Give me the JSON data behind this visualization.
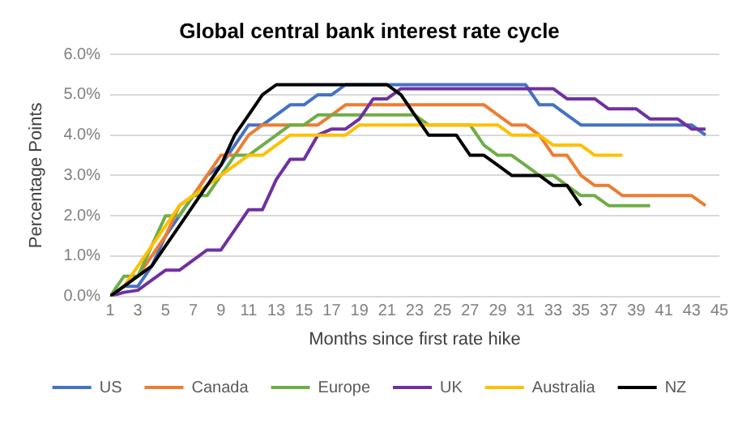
{
  "chart_data": {
    "type": "line",
    "title": "Global central bank interest rate cycle",
    "xlabel": "Months since first rate hike",
    "ylabel": "Percentage Points",
    "x": [
      1,
      2,
      3,
      4,
      5,
      6,
      7,
      8,
      9,
      10,
      11,
      12,
      13,
      14,
      15,
      16,
      17,
      18,
      19,
      20,
      21,
      22,
      23,
      24,
      25,
      26,
      27,
      28,
      29,
      30,
      31,
      32,
      33,
      34,
      35,
      36,
      37,
      38,
      39,
      40,
      41,
      42,
      43,
      44
    ],
    "xlim": [
      1,
      45
    ],
    "xticks": [
      1,
      3,
      5,
      7,
      9,
      11,
      13,
      15,
      17,
      19,
      21,
      23,
      25,
      27,
      29,
      31,
      33,
      35,
      37,
      39,
      41,
      43,
      45
    ],
    "ylim": [
      0,
      6
    ],
    "yticks": [
      {
        "value": 0,
        "label": "0.0%"
      },
      {
        "value": 1,
        "label": "1.0%"
      },
      {
        "value": 2,
        "label": "2.0%"
      },
      {
        "value": 3,
        "label": "3.0%"
      },
      {
        "value": 4,
        "label": "4.0%"
      },
      {
        "value": 5,
        "label": "5.0%"
      },
      {
        "value": 6,
        "label": "6.0%"
      }
    ],
    "grid": "y",
    "legend": "bottom",
    "marker": "none",
    "line_style": "solid",
    "series": [
      {
        "name": "US",
        "color": "#4472c4",
        "values": [
          0,
          0.25,
          0.25,
          0.75,
          1.5,
          2,
          2.5,
          3,
          3.25,
          3.75,
          4.25,
          4.25,
          4.5,
          4.75,
          4.75,
          5,
          5,
          5.25,
          5.25,
          5.25,
          5.25,
          5.25,
          5.25,
          5.25,
          5.25,
          5.25,
          5.25,
          5.25,
          5.25,
          5.25,
          5.25,
          4.75,
          4.75,
          4.5,
          4.25,
          4.25,
          4.25,
          4.25,
          4.25,
          4.25,
          4.25,
          4.25,
          4.25,
          4
        ]
      },
      {
        "name": "Canada",
        "color": "#ed7d31",
        "values": [
          0,
          0.25,
          0.5,
          1,
          1.5,
          2.25,
          2.5,
          3,
          3.5,
          3.5,
          4,
          4.25,
          4.25,
          4.25,
          4.25,
          4.25,
          4.5,
          4.75,
          4.75,
          4.75,
          4.75,
          4.75,
          4.75,
          4.75,
          4.75,
          4.75,
          4.75,
          4.75,
          4.5,
          4.25,
          4.25,
          4,
          3.5,
          3.5,
          3,
          2.75,
          2.75,
          2.5,
          2.5,
          2.5,
          2.5,
          2.5,
          2.5,
          2.25
        ]
      },
      {
        "name": "Europe",
        "color": "#70ad47",
        "values": [
          0,
          0.5,
          0.5,
          1.25,
          2,
          2,
          2.5,
          2.5,
          3,
          3.5,
          3.5,
          3.75,
          4,
          4.25,
          4.25,
          4.5,
          4.5,
          4.5,
          4.5,
          4.5,
          4.5,
          4.5,
          4.5,
          4.25,
          4.25,
          4.25,
          4.25,
          3.75,
          3.5,
          3.5,
          3.25,
          3,
          3,
          2.75,
          2.5,
          2.5,
          2.25,
          2.25,
          2.25,
          2.25,
          null,
          null,
          null,
          null
        ]
      },
      {
        "name": "UK",
        "color": "#7030a0",
        "values": [
          0,
          0.1,
          0.15,
          0.4,
          0.65,
          0.65,
          0.9,
          1.15,
          1.15,
          1.65,
          2.15,
          2.15,
          2.9,
          3.4,
          3.4,
          4,
          4.15,
          4.15,
          4.4,
          4.9,
          4.9,
          5.15,
          5.15,
          5.15,
          5.15,
          5.15,
          5.15,
          5.15,
          5.15,
          5.15,
          5.15,
          5.15,
          5.15,
          4.9,
          4.9,
          4.9,
          4.65,
          4.65,
          4.65,
          4.4,
          4.4,
          4.4,
          4.15,
          4.15
        ]
      },
      {
        "name": "Australia",
        "color": "#ffc000",
        "values": [
          0,
          0.25,
          0.75,
          1.25,
          1.75,
          2.25,
          2.5,
          2.75,
          3,
          3.25,
          3.5,
          3.5,
          3.75,
          4,
          4,
          4,
          4,
          4,
          4.25,
          4.25,
          4.25,
          4.25,
          4.25,
          4.25,
          4.25,
          4.25,
          4.25,
          4.25,
          4.25,
          4,
          4,
          4,
          3.75,
          3.75,
          3.75,
          3.5,
          3.5,
          3.5,
          null,
          null,
          null,
          null,
          null,
          null
        ]
      },
      {
        "name": "NZ",
        "color": "#000000",
        "values": [
          0,
          0.25,
          0.5,
          0.75,
          1.25,
          1.75,
          2.25,
          2.75,
          3.25,
          4,
          4.5,
          5,
          5.25,
          5.25,
          5.25,
          5.25,
          5.25,
          5.25,
          5.25,
          5.25,
          5.25,
          5,
          4.5,
          4,
          4,
          4,
          3.5,
          3.5,
          3.25,
          3,
          3,
          3,
          2.75,
          2.75,
          2.25,
          null,
          null,
          null,
          null,
          null,
          null,
          null,
          null,
          null
        ]
      }
    ]
  }
}
